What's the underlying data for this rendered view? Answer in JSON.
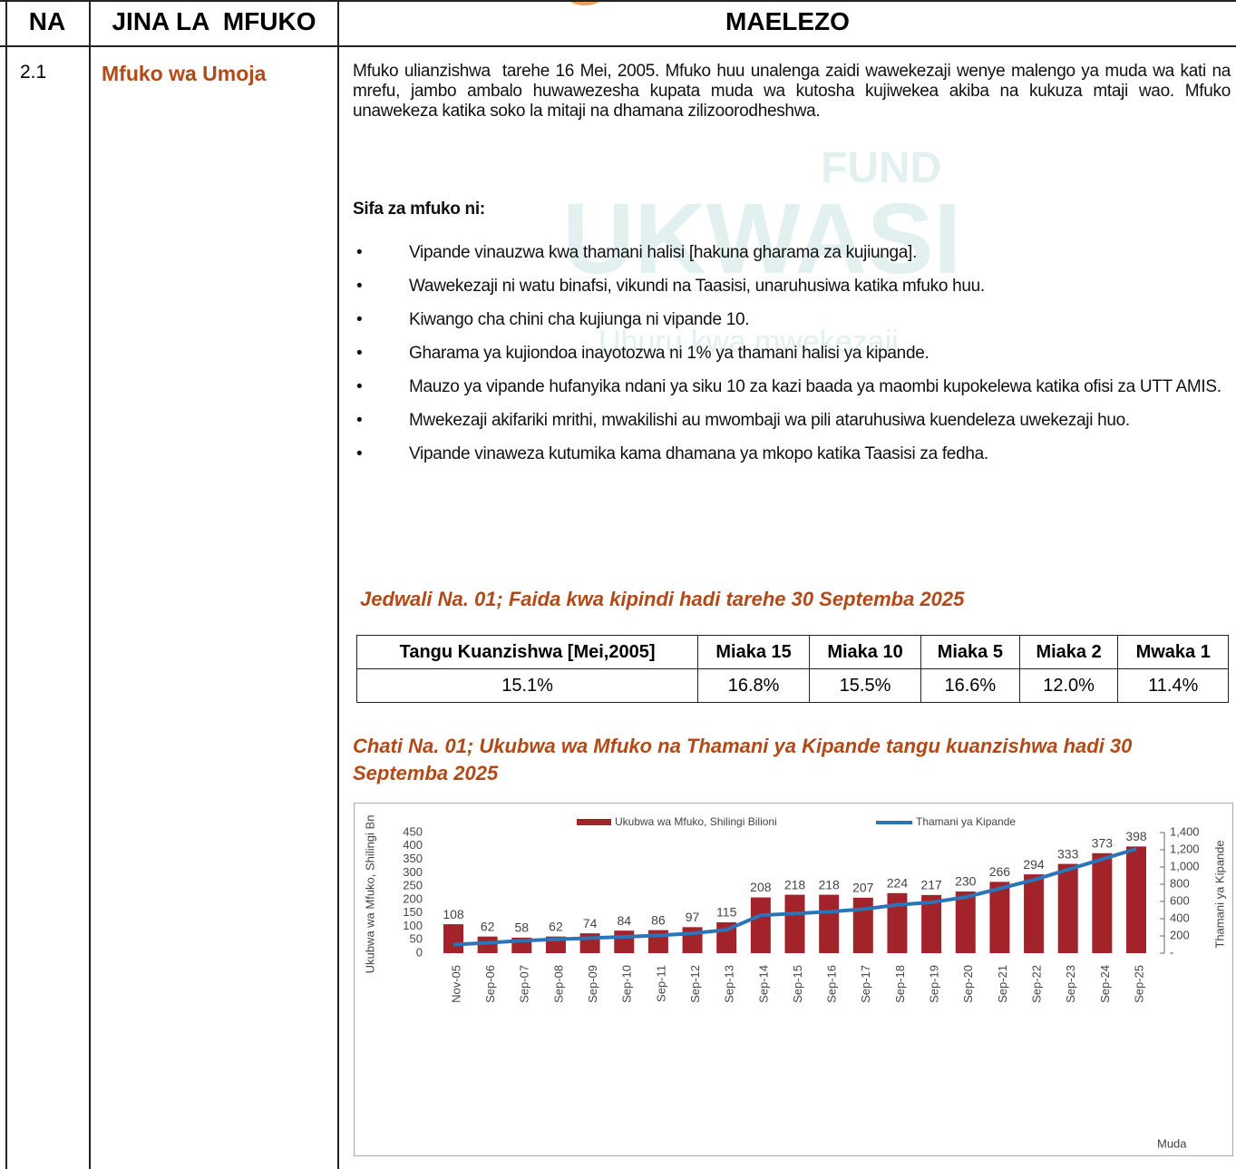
{
  "header": {
    "na": "NA",
    "jina": "JINA LA  MFUKO",
    "maelezo": "MAELEZO"
  },
  "row": {
    "na": "2.1",
    "name": "Mfuko wa Umoja",
    "intro": "Mfuko ulianzishwa  tarehe 16 Mei, 2005. Mfuko huu unalenga zaidi wawekezaji wenye malengo ya muda wa kati na mrefu, jambo ambalo huwawezesha kupata muda wa kutosha kujiwekea akiba na kukuza mtaji wao. Mfuko unawekeza katika soko la mitaji na dhamana zilizoorodheshwa.",
    "features_title": "Sifa za mfuko ni:",
    "features": [
      "Vipande vinauzwa kwa thamani halisi [hakuna gharama za kujiunga].",
      "Wawekezaji ni watu binafsi, vikundi na Taasisi, unaruhusiwa katika mfuko huu.",
      "Kiwango cha chini cha kujiunga ni vipande 10.",
      "Gharama ya kujiondoa inayotozwa ni 1% ya thamani halisi ya kipande.",
      "Mauzo ya vipande hufanyika ndani ya siku 10 za kazi baada ya maombi kupokelewa katika ofisi za UTT AMIS.",
      "Mwekezaji akifariki mrithi, mwakilishi au mwombaji wa pili ataruhusiwa kuendeleza uwekezaji huo.",
      "Vipande vinaweza kutumika kama dhamana ya mkopo katika Taasisi za fedha."
    ],
    "table_caption": "Jedwali Na. 01; Faida kwa kipindi hadi tarehe 30 Septemba 2025",
    "perf_table": {
      "headers": [
        "Tangu Kuanzishwa [Mei,2005]",
        "Miaka 15",
        "Miaka 10",
        "Miaka 5",
        "Miaka 2",
        "Mwaka 1"
      ],
      "values": [
        "15.1%",
        "16.8%",
        "15.5%",
        "16.6%",
        "12.0%",
        "11.4%"
      ]
    },
    "chart_caption": "Chati Na. 01; Ukubwa wa Mfuko na Thamani ya Kipande tangu kuanzishwa hadi 30 Septemba 2025"
  },
  "watermark": {
    "fund": "FUND",
    "brand": "UKWASI",
    "slogan": "Uhuru kwa mwekezaji"
  },
  "chart_data": {
    "type": "bar_line",
    "categories": [
      "Nov-05",
      "Sep-06",
      "Sep-07",
      "Sep-08",
      "Sep-09",
      "Sep-10",
      "Sep-11",
      "Sep-12",
      "Sep-13",
      "Sep-14",
      "Sep-15",
      "Sep-16",
      "Sep-17",
      "Sep-18",
      "Sep-19",
      "Sep-20",
      "Sep-21",
      "Sep-22",
      "Sep-23",
      "Sep-24",
      "Sep-25"
    ],
    "series": [
      {
        "name": "Ukubwa wa Mfuko, Shilingi Bilioni",
        "color": "#a3232a",
        "values": [
          108,
          62,
          58,
          62,
          74,
          84,
          86,
          97,
          115,
          208,
          218,
          218,
          207,
          224,
          217,
          230,
          266,
          294,
          333,
          373,
          398
        ]
      },
      {
        "name": "Thamani ya Kipande",
        "color": "#2a75b8",
        "axis": "y2",
        "values": [
          100,
          120,
          145,
          160,
          175,
          190,
          205,
          230,
          270,
          440,
          460,
          480,
          510,
          560,
          590,
          650,
          750,
          850,
          970,
          1090,
          1210
        ]
      }
    ],
    "ylabel": "Ukubwa wa Mfuko, Shilingi Bn",
    "y2label": "Thamani ya Kipande",
    "xlabel": "Muda",
    "ylim": [
      0,
      450
    ],
    "yticks": [
      0,
      50,
      100,
      150,
      200,
      250,
      300,
      350,
      400,
      450
    ],
    "y2lim": [
      0,
      1400
    ],
    "y2ticks": [
      {
        "value": 0,
        "label": "-"
      },
      200,
      400,
      600,
      800,
      {
        "value": 1000,
        "label": "1,000"
      },
      {
        "value": 1200,
        "label": "1,200"
      },
      {
        "value": 1400,
        "label": "1,400"
      }
    ]
  }
}
